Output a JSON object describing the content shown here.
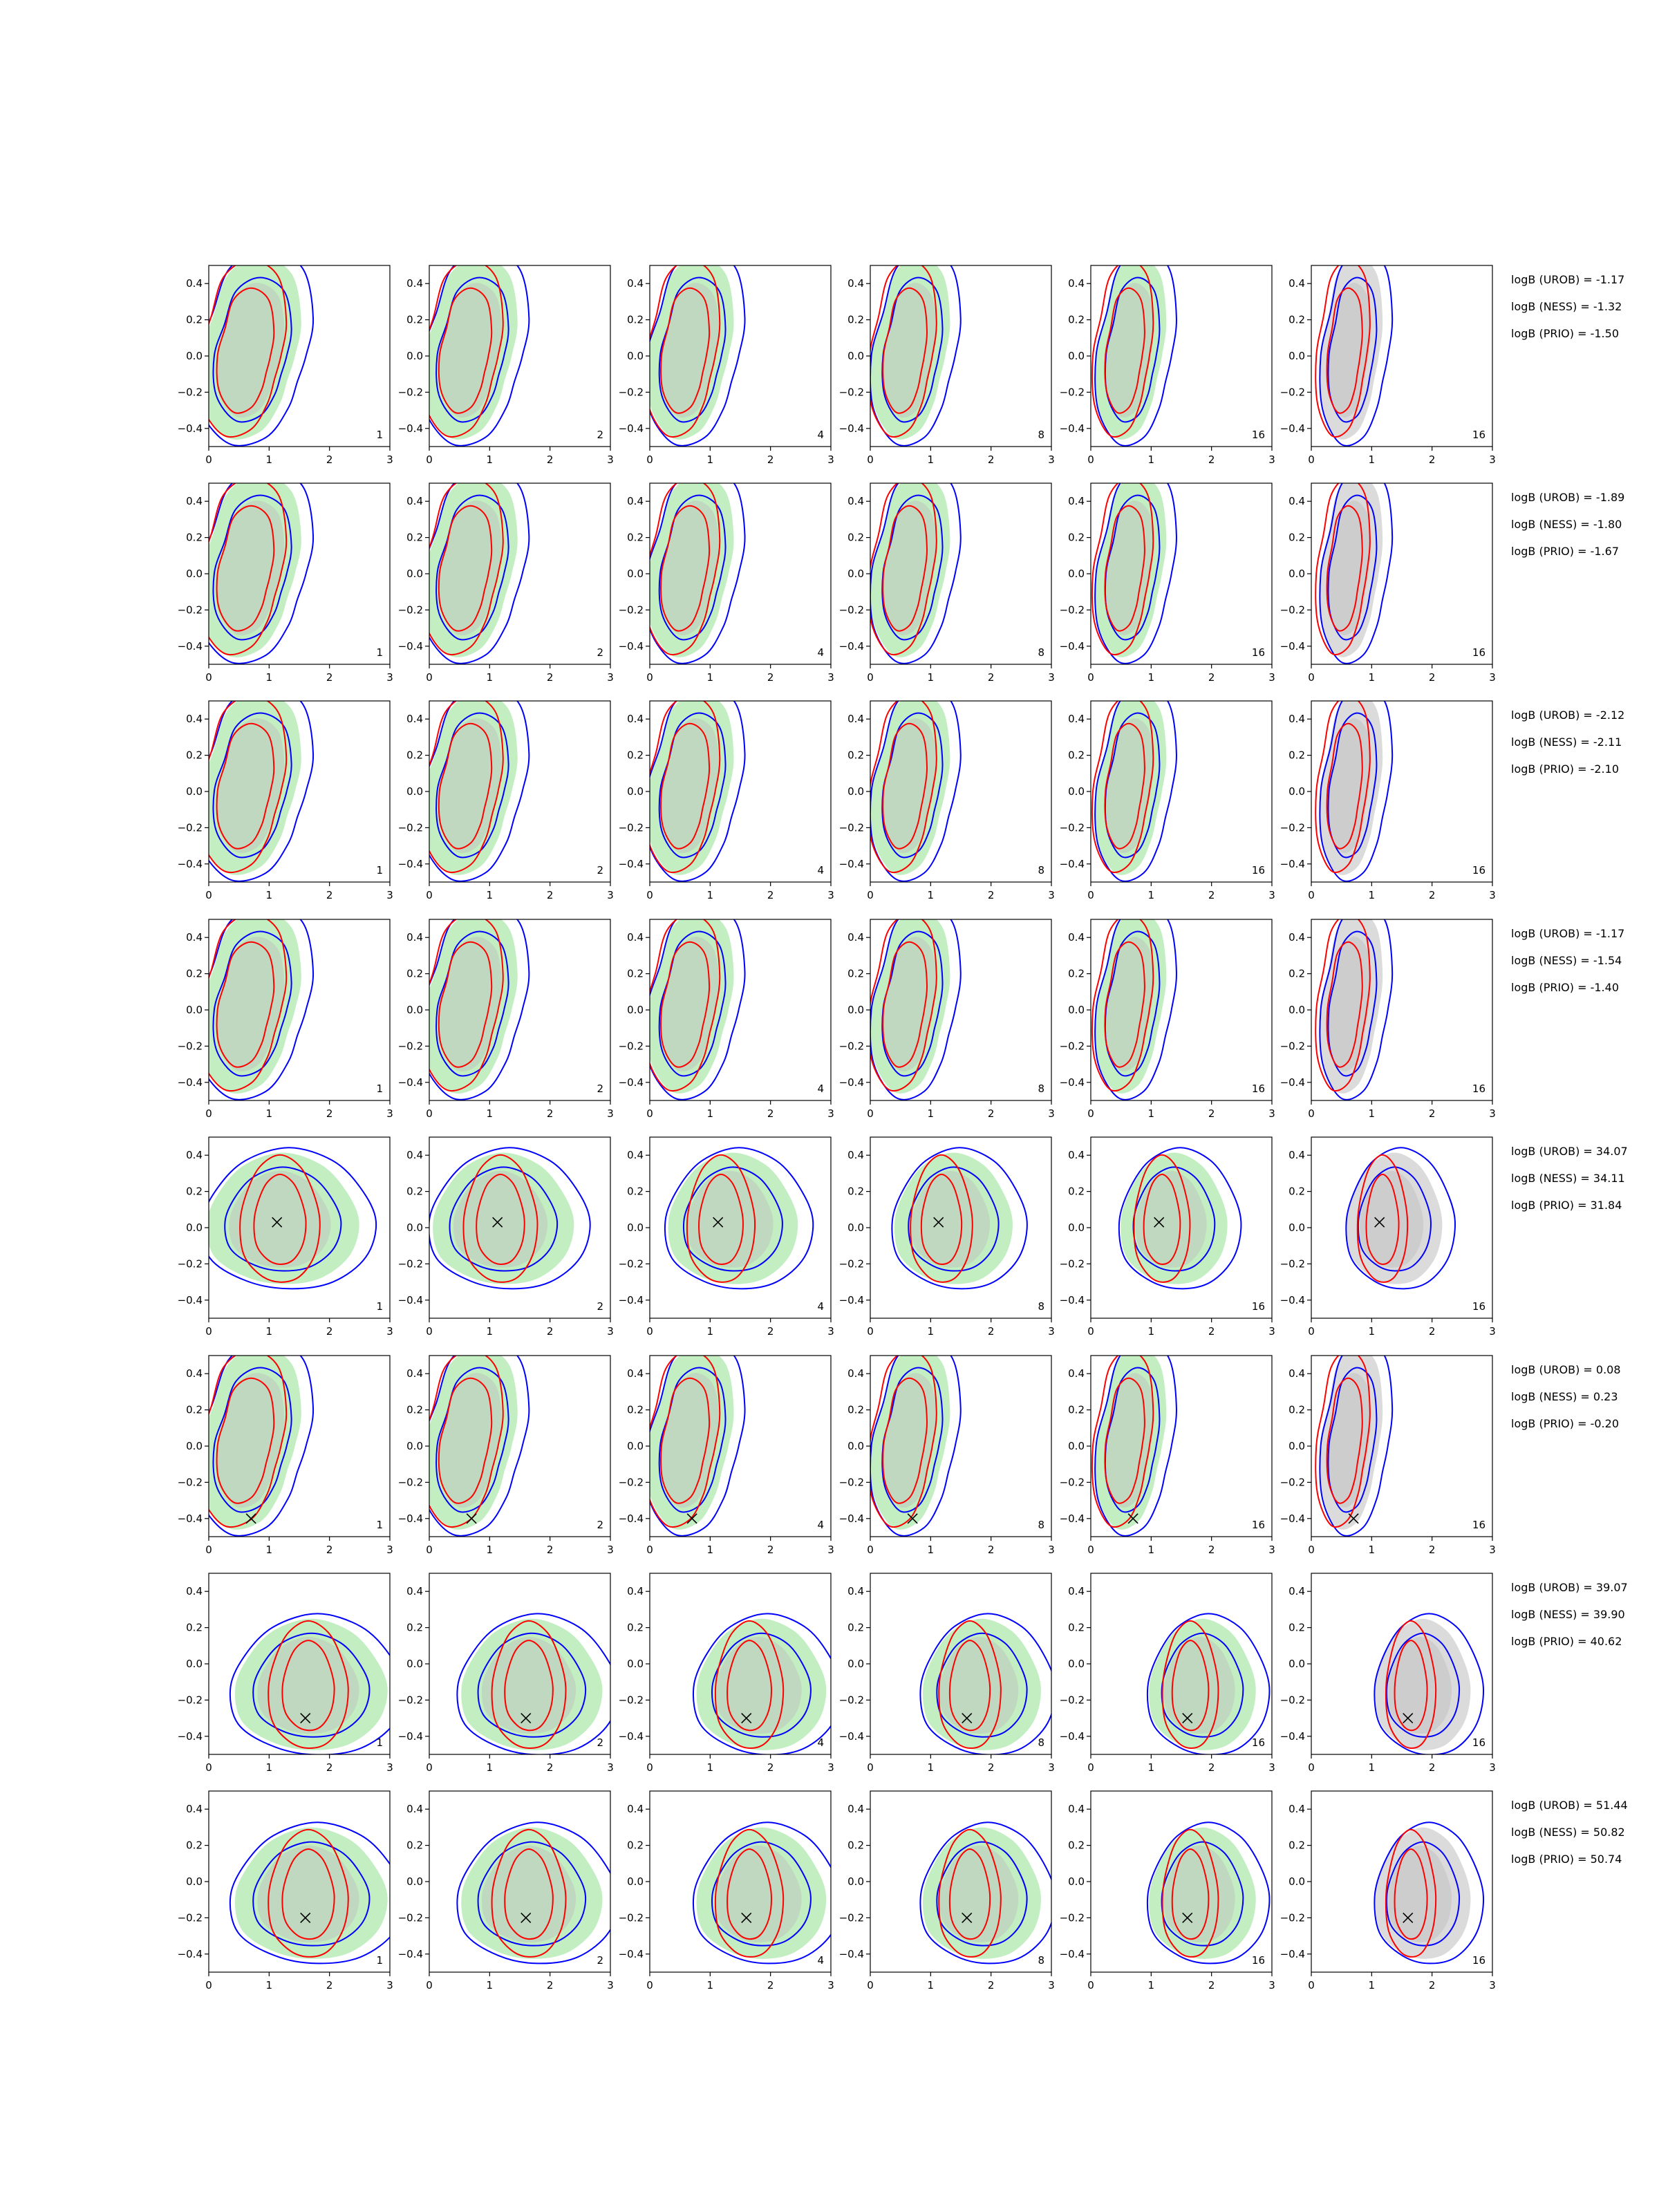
{
  "chart_data": {
    "type": "contour-grid",
    "title": "",
    "xlabel": "",
    "ylabel": "",
    "xlim": [
      0,
      3
    ],
    "ylim": [
      -0.5,
      0.5
    ],
    "x_ticks": [
      0,
      1,
      2,
      3
    ],
    "x_tick_labels": [
      "0",
      "1",
      "2",
      "3"
    ],
    "y_ticks": [
      0.4,
      0.2,
      0.0,
      -0.2,
      -0.4
    ],
    "y_tick_labels": [
      "0.4",
      "0.2",
      "0.0",
      "−0.2",
      "−0.4"
    ],
    "grid": false,
    "legend": "none",
    "column_labels": [
      "1",
      "2",
      "4",
      "8",
      "16",
      "16"
    ],
    "colors": {
      "green_fill": "#8fe08f",
      "gray_fill": "#bdbdbd",
      "blue_line": "#0000ff",
      "red_line": "#ff0000",
      "marker": "#000000"
    },
    "rows": [
      {
        "logB": [
          {
            "label": "logB (UROB) = -1.17"
          },
          {
            "label": "logB (NESS) = -1.32"
          },
          {
            "label": "logB (PRIO) = -1.50"
          }
        ],
        "marker": null
      },
      {
        "logB": [
          {
            "label": "logB (UROB) = -1.89"
          },
          {
            "label": "logB (NESS) = -1.80"
          },
          {
            "label": "logB (PRIO) = -1.67"
          }
        ],
        "marker": null
      },
      {
        "logB": [
          {
            "label": "logB (UROB) = -2.12"
          },
          {
            "label": "logB (NESS) = -2.11"
          },
          {
            "label": "logB (PRIO) = -2.10"
          }
        ],
        "marker": null
      },
      {
        "logB": [
          {
            "label": "logB (UROB) = -1.17"
          },
          {
            "label": "logB (NESS) = -1.54"
          },
          {
            "label": "logB (PRIO) = -1.40"
          }
        ],
        "marker": null
      },
      {
        "logB": [
          {
            "label": "logB (UROB) = 34.07"
          },
          {
            "label": "logB (NESS) = 34.11"
          },
          {
            "label": "logB (PRIO) = 31.84"
          }
        ],
        "marker": [
          1.13,
          0.03
        ]
      },
      {
        "logB": [
          {
            "label": "logB (UROB) = 0.08"
          },
          {
            "label": "logB (NESS) = 0.23"
          },
          {
            "label": "logB (PRIO) = -0.20"
          }
        ],
        "marker": [
          0.7,
          -0.4
        ]
      },
      {
        "logB": [
          {
            "label": "logB (UROB) = 39.07"
          },
          {
            "label": "logB (NESS) = 39.90"
          },
          {
            "label": "logB (PRIO) = 40.62"
          }
        ],
        "marker": [
          1.6,
          -0.3
        ]
      },
      {
        "logB": [
          {
            "label": "logB (UROB) = 51.44"
          },
          {
            "label": "logB (NESS) = 50.82"
          },
          {
            "label": "logB (PRIO) = 50.74"
          }
        ],
        "marker": [
          1.6,
          -0.2
        ]
      }
    ]
  }
}
